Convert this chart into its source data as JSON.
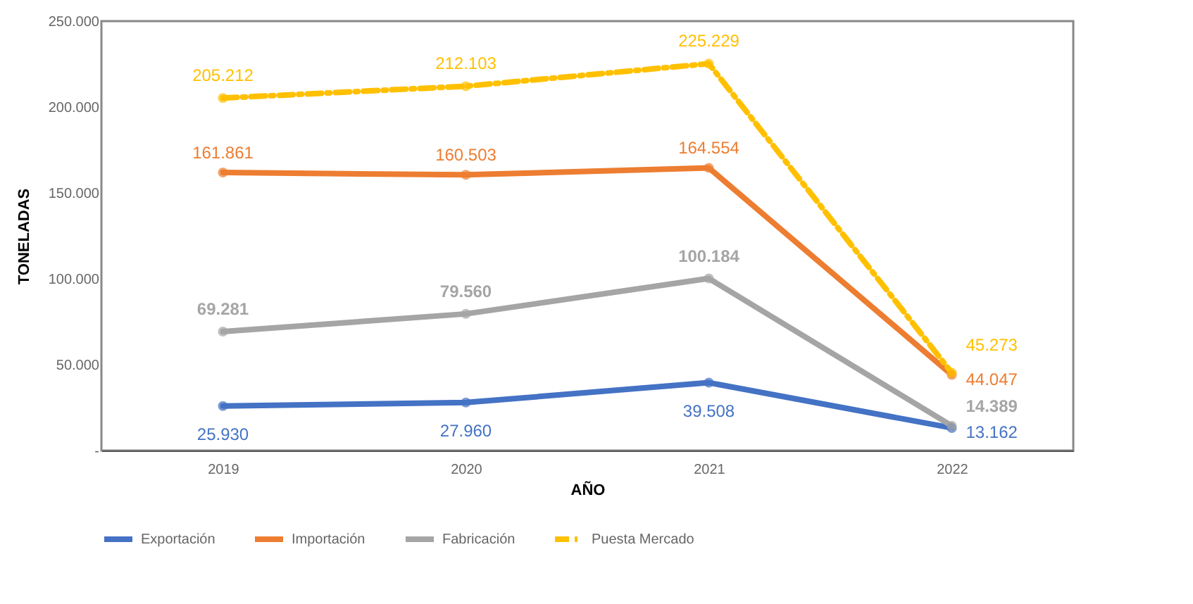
{
  "chart_data": {
    "type": "line",
    "xlabel": "AÑO",
    "ylabel": "TONELADAS",
    "categories": [
      "2019",
      "2020",
      "2021",
      "2022"
    ],
    "ylim": [
      0,
      250000
    ],
    "yticks": [
      {
        "value": 0,
        "label": "-"
      },
      {
        "value": 50000,
        "label": "50.000"
      },
      {
        "value": 100000,
        "label": "100.000"
      },
      {
        "value": 150000,
        "label": "150.000"
      },
      {
        "value": 200000,
        "label": "200.000"
      },
      {
        "value": 250000,
        "label": "250.000"
      }
    ],
    "series": [
      {
        "name": "Exportación",
        "color": "#4472c4",
        "values": [
          25930,
          27960,
          39508,
          13162
        ],
        "value_labels": [
          "25.930",
          "27.960",
          "39.508",
          "13.162"
        ]
      },
      {
        "name": "Importación",
        "color": "#ed7d31",
        "values": [
          161861,
          160503,
          164554,
          44047
        ],
        "value_labels": [
          "161.861",
          "160.503",
          "164.554",
          "44.047"
        ]
      },
      {
        "name": "Fabricación",
        "color": "#a5a5a5",
        "values": [
          69281,
          79560,
          100184,
          14389
        ],
        "value_labels": [
          "69.281",
          "79.560",
          "100.184",
          "14.389"
        ]
      },
      {
        "name": "Puesta Mercado",
        "color": "#ffc000",
        "line_style": "dashed",
        "values": [
          205212,
          212103,
          225229,
          45273
        ],
        "value_labels": [
          "205.212",
          "212.103",
          "225.229",
          "45.273"
        ]
      }
    ],
    "marker": "circle",
    "legend": "bottom",
    "grid": false
  }
}
